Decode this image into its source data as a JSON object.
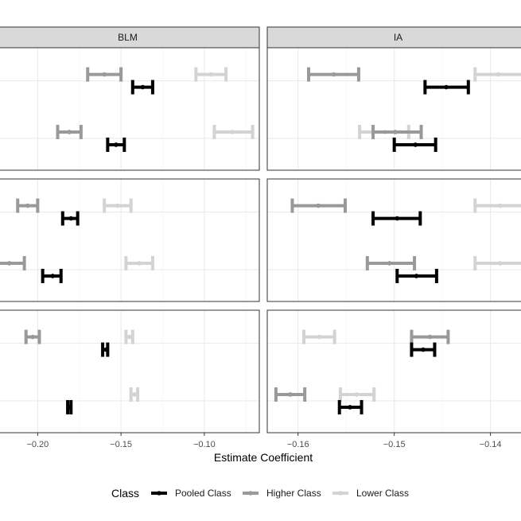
{
  "chart_data": {
    "type": "errorbar",
    "xlabel": "Estimate Coefficient",
    "legend": {
      "title": "Class",
      "position": "bottom",
      "entries": [
        {
          "name": "Pooled Class",
          "color": "#000000"
        },
        {
          "name": "Higher Class",
          "color": "#999999"
        },
        {
          "name": "Lower Class",
          "color": "#d3d3d3"
        }
      ]
    },
    "grid": true,
    "panels_by_column": [
      {
        "strip": "BLM",
        "xlim": [
          -0.225,
          -0.067
        ],
        "ticks": [
          -0.2,
          -0.15,
          -0.1
        ],
        "tick_labels": [
          "−0.20",
          "−0.15",
          "−0.10"
        ],
        "rows": [
          [
            {
              "series": "Higher Class",
              "group": 1,
              "estimate": -0.16,
              "low": -0.17,
              "high": -0.15
            },
            {
              "series": "Pooled Class",
              "group": 1,
              "estimate": -0.137,
              "low": -0.143,
              "high": -0.131
            },
            {
              "series": "Lower Class",
              "group": 1,
              "estimate": -0.096,
              "low": -0.105,
              "high": -0.087
            },
            {
              "series": "Higher Class",
              "group": 2,
              "estimate": -0.181,
              "low": -0.188,
              "high": -0.174
            },
            {
              "series": "Pooled Class",
              "group": 2,
              "estimate": -0.153,
              "low": -0.158,
              "high": -0.148
            },
            {
              "series": "Lower Class",
              "group": 2,
              "estimate": -0.083,
              "low": -0.094,
              "high": -0.071
            }
          ],
          [
            {
              "series": "Higher Class",
              "group": 1,
              "estimate": -0.206,
              "low": -0.212,
              "high": -0.2
            },
            {
              "series": "Pooled Class",
              "group": 1,
              "estimate": -0.18,
              "low": -0.185,
              "high": -0.176
            },
            {
              "series": "Lower Class",
              "group": 1,
              "estimate": -0.152,
              "low": -0.16,
              "high": -0.144
            },
            {
              "series": "Higher Class",
              "group": 2,
              "estimate": -0.217,
              "low": -0.226,
              "high": -0.208
            },
            {
              "series": "Pooled Class",
              "group": 2,
              "estimate": -0.191,
              "low": -0.197,
              "high": -0.186
            },
            {
              "series": "Lower Class",
              "group": 2,
              "estimate": -0.139,
              "low": -0.147,
              "high": -0.131
            }
          ],
          [
            {
              "series": "Higher Class",
              "group": 1,
              "estimate": -0.203,
              "low": -0.207,
              "high": -0.199
            },
            {
              "series": "Pooled Class",
              "group": 1,
              "estimate": -0.159,
              "low": -0.161,
              "high": -0.158
            },
            {
              "series": "Lower Class",
              "group": 1,
              "estimate": -0.145,
              "low": -0.147,
              "high": -0.143
            },
            {
              "series": "Higher Class",
              "group": 2,
              "estimate": -0.226,
              "low": -0.228,
              "high": -0.224
            },
            {
              "series": "Pooled Class",
              "group": 2,
              "estimate": -0.181,
              "low": -0.182,
              "high": -0.18
            },
            {
              "series": "Lower Class",
              "group": 2,
              "estimate": -0.142,
              "low": -0.144,
              "high": -0.14
            }
          ]
        ]
      },
      {
        "strip": "IA",
        "xlim": [
          -0.1632,
          -0.136
        ],
        "ticks": [
          -0.16,
          -0.15,
          -0.14
        ],
        "tick_labels": [
          "−0.16",
          "−0.15",
          "−0.14"
        ],
        "rows": [
          [
            {
              "series": "Higher Class",
              "group": 1,
              "estimate": -0.1563,
              "low": -0.1589,
              "high": -0.1537
            },
            {
              "series": "Pooled Class",
              "group": 1,
              "estimate": -0.1446,
              "low": -0.1468,
              "high": -0.1423
            },
            {
              "series": "Lower Class",
              "group": 1,
              "estimate": -0.1392,
              "low": -0.1416,
              "high": -0.136
            },
            {
              "series": "Lower Class",
              "group": 2,
              "estimate": -0.151,
              "low": -0.1536,
              "high": -0.1485
            },
            {
              "series": "Higher Class",
              "group": 2,
              "estimate": -0.1499,
              "low": -0.1522,
              "high": -0.1472
            },
            {
              "series": "Pooled Class",
              "group": 2,
              "estimate": -0.1478,
              "low": -0.15,
              "high": -0.1457
            }
          ],
          [
            {
              "series": "Higher Class",
              "group": 1,
              "estimate": -0.1579,
              "low": -0.1606,
              "high": -0.1551
            },
            {
              "series": "Pooled Class",
              "group": 1,
              "estimate": -0.1497,
              "low": -0.1522,
              "high": -0.1473
            },
            {
              "series": "Lower Class",
              "group": 1,
              "estimate": -0.139,
              "low": -0.1416,
              "high": -0.136
            },
            {
              "series": "Higher Class",
              "group": 2,
              "estimate": -0.1505,
              "low": -0.1528,
              "high": -0.1479
            },
            {
              "series": "Pooled Class",
              "group": 2,
              "estimate": -0.1477,
              "low": -0.1497,
              "high": -0.1456
            },
            {
              "series": "Lower Class",
              "group": 2,
              "estimate": -0.139,
              "low": -0.1416,
              "high": -0.136
            }
          ],
          [
            {
              "series": "Lower Class",
              "group": 1,
              "estimate": -0.1578,
              "low": -0.1594,
              "high": -0.1562
            },
            {
              "series": "Higher Class",
              "group": 1,
              "estimate": -0.1463,
              "low": -0.1482,
              "high": -0.1444
            },
            {
              "series": "Pooled Class",
              "group": 1,
              "estimate": -0.147,
              "low": -0.1482,
              "high": -0.1458
            },
            {
              "series": "Higher Class",
              "group": 2,
              "estimate": -0.1608,
              "low": -0.1623,
              "high": -0.1593
            },
            {
              "series": "Lower Class",
              "group": 2,
              "estimate": -0.1539,
              "low": -0.1556,
              "high": -0.1521
            },
            {
              "series": "Pooled Class",
              "group": 2,
              "estimate": -0.1546,
              "low": -0.1557,
              "high": -0.1534
            }
          ]
        ]
      }
    ]
  }
}
